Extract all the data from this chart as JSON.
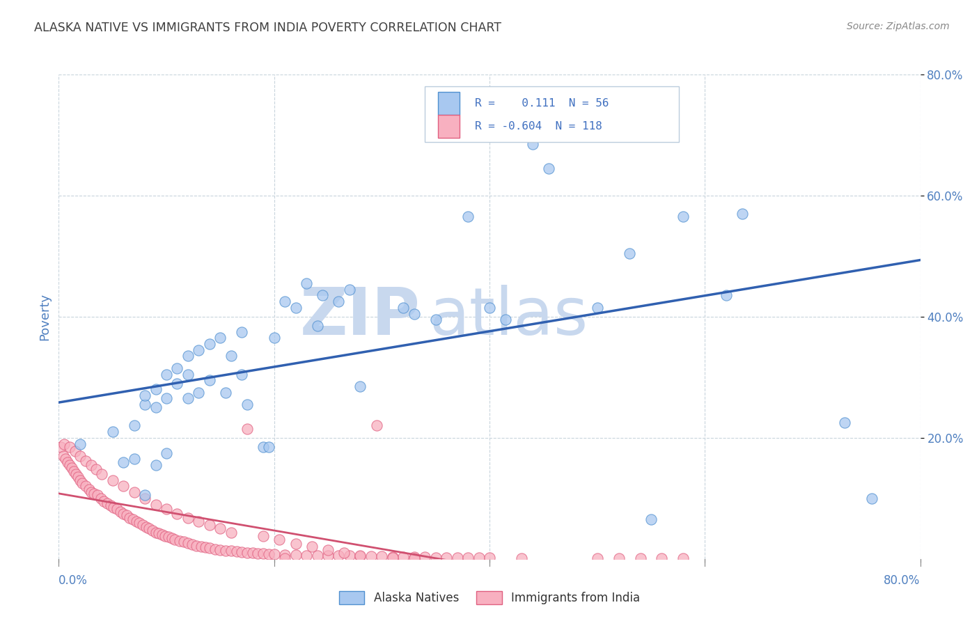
{
  "title": "ALASKA NATIVE VS IMMIGRANTS FROM INDIA POVERTY CORRELATION CHART",
  "source": "Source: ZipAtlas.com",
  "ylabel": "Poverty",
  "xlim": [
    0.0,
    0.8
  ],
  "ylim": [
    0.0,
    0.8
  ],
  "legend_label_blue": "Alaska Natives",
  "legend_label_pink": "Immigrants from India",
  "blue_fill": "#A8C8F0",
  "blue_edge": "#5090D0",
  "pink_fill": "#F8B0C0",
  "pink_edge": "#E06080",
  "line_blue": "#3060B0",
  "line_pink": "#D05070",
  "line_pink_dash": "#E080A0",
  "text_blue": "#4070C0",
  "watermark_zip": "#C8D8EE",
  "watermark_atlas": "#C8D8EE",
  "background_color": "#FFFFFF",
  "title_color": "#404040",
  "axis_tick_color": "#5080C0",
  "grid_color": "#C8D4DC",
  "blue_scatter_x": [
    0.02,
    0.05,
    0.06,
    0.07,
    0.07,
    0.08,
    0.08,
    0.08,
    0.09,
    0.09,
    0.09,
    0.1,
    0.1,
    0.1,
    0.11,
    0.11,
    0.12,
    0.12,
    0.12,
    0.13,
    0.13,
    0.14,
    0.14,
    0.15,
    0.155,
    0.16,
    0.17,
    0.17,
    0.175,
    0.19,
    0.195,
    0.2,
    0.21,
    0.22,
    0.23,
    0.24,
    0.245,
    0.26,
    0.27,
    0.28,
    0.32,
    0.33,
    0.35,
    0.38,
    0.4,
    0.415,
    0.44,
    0.455,
    0.5,
    0.53,
    0.55,
    0.58,
    0.62,
    0.635,
    0.73,
    0.755
  ],
  "blue_scatter_y": [
    0.19,
    0.21,
    0.16,
    0.165,
    0.22,
    0.105,
    0.255,
    0.27,
    0.155,
    0.25,
    0.28,
    0.175,
    0.265,
    0.305,
    0.29,
    0.315,
    0.265,
    0.305,
    0.335,
    0.275,
    0.345,
    0.295,
    0.355,
    0.365,
    0.275,
    0.335,
    0.305,
    0.375,
    0.255,
    0.185,
    0.185,
    0.365,
    0.425,
    0.415,
    0.455,
    0.385,
    0.435,
    0.425,
    0.445,
    0.285,
    0.415,
    0.405,
    0.395,
    0.565,
    0.415,
    0.395,
    0.685,
    0.645,
    0.415,
    0.505,
    0.065,
    0.565,
    0.435,
    0.57,
    0.225,
    0.1
  ],
  "pink_scatter_x": [
    0.002,
    0.004,
    0.006,
    0.008,
    0.01,
    0.012,
    0.014,
    0.016,
    0.018,
    0.02,
    0.022,
    0.025,
    0.028,
    0.03,
    0.033,
    0.036,
    0.039,
    0.042,
    0.045,
    0.048,
    0.051,
    0.054,
    0.057,
    0.06,
    0.063,
    0.066,
    0.069,
    0.072,
    0.075,
    0.078,
    0.081,
    0.084,
    0.087,
    0.09,
    0.093,
    0.096,
    0.099,
    0.102,
    0.105,
    0.108,
    0.112,
    0.116,
    0.12,
    0.124,
    0.128,
    0.132,
    0.136,
    0.14,
    0.145,
    0.15,
    0.155,
    0.16,
    0.165,
    0.17,
    0.175,
    0.18,
    0.185,
    0.19,
    0.195,
    0.2,
    0.21,
    0.22,
    0.23,
    0.24,
    0.25,
    0.26,
    0.27,
    0.28,
    0.29,
    0.3,
    0.31,
    0.32,
    0.33,
    0.34,
    0.35,
    0.36,
    0.37,
    0.38,
    0.39,
    0.4,
    0.005,
    0.01,
    0.015,
    0.02,
    0.025,
    0.03,
    0.035,
    0.04,
    0.05,
    0.06,
    0.07,
    0.08,
    0.09,
    0.1,
    0.11,
    0.12,
    0.13,
    0.14,
    0.15,
    0.16,
    0.175,
    0.19,
    0.205,
    0.22,
    0.235,
    0.25,
    0.265,
    0.28,
    0.295,
    0.31,
    0.21,
    0.33,
    0.43,
    0.5,
    0.52,
    0.54,
    0.56,
    0.58
  ],
  "pink_scatter_y": [
    0.185,
    0.17,
    0.165,
    0.16,
    0.155,
    0.15,
    0.145,
    0.14,
    0.135,
    0.13,
    0.125,
    0.12,
    0.115,
    0.11,
    0.108,
    0.105,
    0.1,
    0.095,
    0.092,
    0.088,
    0.085,
    0.082,
    0.078,
    0.075,
    0.072,
    0.068,
    0.065,
    0.062,
    0.059,
    0.056,
    0.053,
    0.05,
    0.047,
    0.044,
    0.042,
    0.04,
    0.038,
    0.036,
    0.034,
    0.032,
    0.03,
    0.028,
    0.026,
    0.024,
    0.022,
    0.02,
    0.019,
    0.018,
    0.016,
    0.015,
    0.014,
    0.013,
    0.012,
    0.011,
    0.01,
    0.01,
    0.009,
    0.009,
    0.008,
    0.008,
    0.007,
    0.007,
    0.006,
    0.006,
    0.005,
    0.005,
    0.005,
    0.004,
    0.004,
    0.004,
    0.003,
    0.003,
    0.003,
    0.003,
    0.002,
    0.002,
    0.002,
    0.002,
    0.002,
    0.002,
    0.19,
    0.185,
    0.178,
    0.17,
    0.162,
    0.155,
    0.148,
    0.14,
    0.13,
    0.12,
    0.11,
    0.1,
    0.09,
    0.082,
    0.075,
    0.068,
    0.062,
    0.056,
    0.05,
    0.044,
    0.215,
    0.038,
    0.032,
    0.025,
    0.02,
    0.015,
    0.01,
    0.006,
    0.22,
    0.002,
    0.001,
    0.001,
    0.001,
    0.001,
    0.001,
    0.001,
    0.001,
    0.001
  ]
}
